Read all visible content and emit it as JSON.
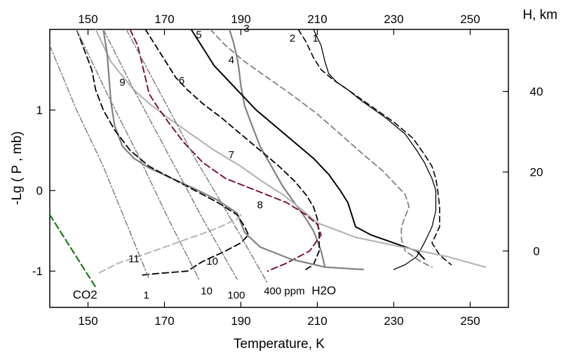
{
  "chart_data": {
    "type": "line",
    "xlabel": "Temperature, K",
    "ylabel": "-Lg ( P ,  mb)",
    "top_axis_label": "",
    "right_axis_label": "H, km",
    "xlim": [
      140,
      260
    ],
    "ylim": [
      -1.45,
      2.0
    ],
    "x_ticks": [
      150,
      170,
      190,
      210,
      230,
      250
    ],
    "top_ticks": [
      150,
      170,
      190,
      210,
      230,
      250
    ],
    "y_ticks": [
      1,
      0,
      -1
    ],
    "right_ticks": [
      {
        "label": "40",
        "y": 1.23
      },
      {
        "label": "20",
        "y": 0.23
      },
      {
        "label": "0",
        "y": -0.75
      }
    ],
    "grid": false,
    "curve_labels": [
      {
        "text": "1",
        "x": 209.5,
        "y": 1.85
      },
      {
        "text": "2",
        "x": 203.5,
        "y": 1.85
      },
      {
        "text": "3",
        "x": 191.5,
        "y": 1.97
      },
      {
        "text": "4",
        "x": 187.5,
        "y": 1.58
      },
      {
        "text": "5",
        "x": 179.0,
        "y": 1.89
      },
      {
        "text": "6",
        "x": 174.5,
        "y": 1.32
      },
      {
        "text": "7",
        "x": 187.5,
        "y": 0.4
      },
      {
        "text": "8",
        "x": 195.0,
        "y": -0.22
      },
      {
        "text": "9",
        "x": 159.0,
        "y": 1.3
      },
      {
        "text": "10",
        "x": 182.5,
        "y": -0.92
      },
      {
        "text": "11",
        "x": 162.0,
        "y": -0.89
      }
    ],
    "annotations": [
      {
        "text": "CO2",
        "x": 146.0,
        "y": -1.34,
        "size": "big"
      },
      {
        "text": "1",
        "x": 164.5,
        "y": -1.34,
        "size": "small"
      },
      {
        "text": "10",
        "x": 179.5,
        "y": -1.29,
        "size": "small"
      },
      {
        "text": "100",
        "x": 186.5,
        "y": -1.34,
        "size": "small"
      },
      {
        "text": "400 ppm",
        "x": 196.0,
        "y": -1.29,
        "size": "small"
      },
      {
        "text": "H2O",
        "x": 208.5,
        "y": -1.29,
        "size": "big"
      }
    ],
    "series": [
      {
        "id": "1",
        "color": "#000000",
        "dash": "solid",
        "width": 1.3,
        "x": [
          209,
          211,
          212,
          213,
          215,
          218,
          222,
          228,
          233,
          236,
          238,
          240,
          241,
          241,
          240,
          238,
          236,
          233,
          230
        ],
        "y": [
          2.0,
          1.8,
          1.6,
          1.45,
          1.35,
          1.25,
          1.1,
          0.9,
          0.7,
          0.5,
          0.35,
          0.15,
          0.0,
          -0.25,
          -0.45,
          -0.65,
          -0.82,
          -0.92,
          -0.98
        ]
      },
      {
        "id": "2",
        "color": "#000000",
        "dash": "8,5",
        "width": 1.6,
        "x": [
          205,
          207,
          209,
          211,
          214,
          218,
          224,
          230,
          235,
          238,
          240,
          241,
          241.5,
          242,
          242,
          240,
          242,
          245
        ],
        "y": [
          2.0,
          1.85,
          1.65,
          1.5,
          1.38,
          1.25,
          1.05,
          0.85,
          0.65,
          0.45,
          0.3,
          0.15,
          0.0,
          -0.2,
          -0.45,
          -0.65,
          -0.8,
          -0.92
        ]
      },
      {
        "id": "3",
        "color": "#808080",
        "dash": "solid",
        "width": 2.2,
        "x": [
          187,
          188,
          189,
          189.5,
          190,
          191,
          193,
          195,
          198,
          201,
          204,
          207,
          209,
          210,
          211,
          212
        ],
        "y": [
          2.0,
          1.85,
          1.65,
          1.5,
          1.3,
          1.05,
          0.8,
          0.55,
          0.3,
          0.05,
          -0.15,
          -0.35,
          -0.5,
          -0.62,
          -0.75,
          -0.95
        ]
      },
      {
        "id": "4",
        "color": "#808080",
        "dash": "8,5",
        "width": 1.8,
        "x": [
          182,
          186,
          191,
          197,
          203,
          210,
          216,
          222,
          227,
          230,
          233,
          234,
          233,
          232,
          232,
          233,
          237,
          240
        ],
        "y": [
          2.0,
          1.8,
          1.6,
          1.4,
          1.2,
          0.95,
          0.7,
          0.45,
          0.25,
          0.1,
          -0.05,
          -0.2,
          -0.32,
          -0.45,
          -0.6,
          -0.75,
          -0.88,
          -0.95
        ]
      },
      {
        "id": "5",
        "color": "#000000",
        "dash": "solid",
        "width": 2.0,
        "x": [
          177,
          179,
          181,
          183,
          186,
          190,
          194,
          199,
          204,
          209,
          213,
          216,
          218,
          219,
          220,
          224,
          230,
          236,
          238
        ],
        "y": [
          2.0,
          1.85,
          1.7,
          1.55,
          1.4,
          1.2,
          1.0,
          0.8,
          0.6,
          0.4,
          0.2,
          0.0,
          -0.15,
          -0.3,
          -0.45,
          -0.55,
          -0.65,
          -0.75,
          -0.85
        ]
      },
      {
        "id": "6",
        "color": "#000000",
        "dash": "8,5",
        "width": 1.8,
        "x": [
          165,
          167,
          169,
          171,
          173,
          176,
          180,
          185,
          190,
          195,
          200,
          204,
          207,
          209,
          210,
          210.5,
          210.5,
          209,
          207
        ],
        "y": [
          2.0,
          1.85,
          1.7,
          1.55,
          1.4,
          1.25,
          1.08,
          0.9,
          0.7,
          0.5,
          0.3,
          0.12,
          -0.05,
          -0.2,
          -0.35,
          -0.55,
          -0.75,
          -0.92,
          -0.98
        ]
      },
      {
        "id": "7",
        "color": "#b4b4b4",
        "dash": "solid",
        "width": 2.2,
        "x": [
          152,
          154,
          156,
          159,
          162,
          166,
          171,
          177,
          183,
          190,
          196,
          201,
          205,
          210,
          220,
          232,
          244,
          254
        ],
        "y": [
          2.0,
          1.8,
          1.6,
          1.42,
          1.25,
          1.08,
          0.9,
          0.7,
          0.5,
          0.3,
          0.1,
          -0.05,
          -0.2,
          -0.4,
          -0.58,
          -0.7,
          -0.82,
          -0.95
        ]
      },
      {
        "id": "8",
        "color": "#780c28",
        "dash": "9,5",
        "width": 1.9,
        "x": [
          161,
          163,
          164,
          165,
          166,
          168,
          171,
          175,
          180,
          186,
          194,
          202,
          207,
          210,
          211,
          208,
          202,
          197
        ],
        "y": [
          2.0,
          1.8,
          1.6,
          1.4,
          1.2,
          1.05,
          0.85,
          0.6,
          0.35,
          0.15,
          0.0,
          -0.15,
          -0.3,
          -0.42,
          -0.55,
          -0.75,
          -0.9,
          -1.0
        ]
      },
      {
        "id": "9",
        "color": "#808080",
        "dash": "solid",
        "width": 2.2,
        "x": [
          154,
          155,
          155.5,
          156,
          157,
          159,
          162,
          166,
          172,
          178,
          184,
          189,
          190,
          191,
          195,
          203,
          212,
          222
        ],
        "y": [
          2.0,
          1.7,
          1.4,
          1.1,
          0.8,
          0.55,
          0.4,
          0.28,
          0.15,
          0.02,
          -0.12,
          -0.28,
          -0.4,
          -0.52,
          -0.7,
          -0.85,
          -0.95,
          -0.98
        ]
      },
      {
        "id": "10",
        "color": "#000000",
        "dash": "9,5",
        "width": 1.8,
        "x": [
          147,
          149,
          151,
          152,
          154,
          157,
          161,
          166,
          172,
          178,
          184,
          189,
          191,
          192,
          190,
          186,
          180,
          176,
          168,
          164
        ],
        "y": [
          2.0,
          1.75,
          1.5,
          1.25,
          1.0,
          0.75,
          0.5,
          0.3,
          0.15,
          0.0,
          -0.15,
          -0.3,
          -0.45,
          -0.55,
          -0.65,
          -0.75,
          -0.88,
          -1.0,
          -1.03,
          -1.05
        ]
      },
      {
        "id": "11",
        "color": "#b4b4b4",
        "dash": "9,5",
        "width": 2.0,
        "x": [
          153,
          155,
          158,
          163,
          169,
          176,
          182,
          186,
          189,
          190
        ],
        "y": [
          -1.02,
          -0.97,
          -0.9,
          -0.82,
          -0.72,
          -0.6,
          -0.5,
          -0.42,
          -0.35,
          -0.3
        ]
      },
      {
        "id": "CO2",
        "color": "#187a18",
        "dash": "9,5",
        "width": 2.2,
        "x": [
          140,
          144,
          148,
          152
        ],
        "y": [
          -0.3,
          -0.6,
          -0.9,
          -1.2
        ]
      },
      {
        "id": "H2O-1",
        "color": "#808080",
        "dash": "8,3,2,3",
        "width": 1.5,
        "x": [
          140,
          147,
          154,
          160,
          166
        ],
        "y": [
          1.8,
          1.0,
          0.3,
          -0.4,
          -1.1
        ]
      },
      {
        "id": "H2O-10",
        "color": "#808080",
        "dash": "8,3,2,3",
        "width": 1.5,
        "x": [
          147,
          155,
          163,
          171,
          179
        ],
        "y": [
          2.0,
          1.2,
          0.45,
          -0.35,
          -1.1
        ]
      },
      {
        "id": "H2O-100",
        "color": "#808080",
        "dash": "8,3,2,3",
        "width": 1.5,
        "x": [
          154,
          162,
          171,
          180,
          189
        ],
        "y": [
          2.0,
          1.25,
          0.45,
          -0.35,
          -1.1
        ]
      },
      {
        "id": "H2O-400",
        "color": "#808080",
        "dash": "8,3,2,3",
        "width": 1.5,
        "x": [
          160,
          169,
          178,
          188,
          197
        ],
        "y": [
          2.0,
          1.2,
          0.4,
          -0.4,
          -1.15
        ]
      }
    ]
  }
}
